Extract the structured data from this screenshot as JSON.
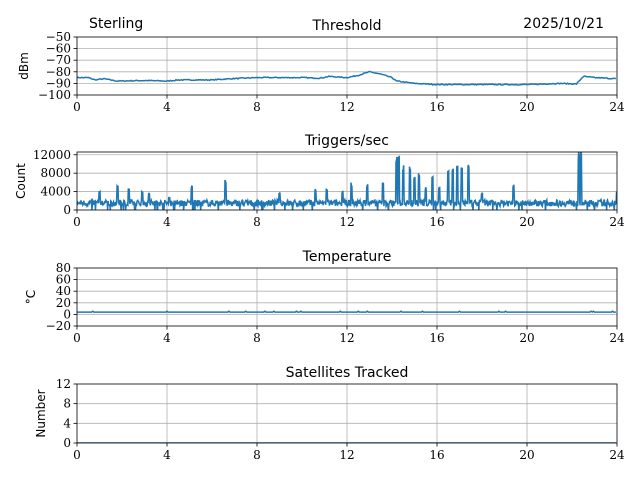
{
  "header": {
    "site": "Sterling",
    "date": "2025/10/21"
  },
  "chart_data": [
    {
      "type": "line",
      "title": "Threshold",
      "xlabel": "",
      "ylabel": "dBm",
      "xlim": [
        0,
        24
      ],
      "ylim": [
        -100,
        -50
      ],
      "xticks": [
        "0",
        "4",
        "8",
        "12",
        "16",
        "20",
        "24"
      ],
      "yticks": [
        "−50",
        "−60",
        "−70",
        "−80",
        "−90",
        "−100"
      ],
      "grid": true,
      "x": [
        0,
        0.5,
        0.8,
        1.2,
        1.8,
        3,
        4,
        4.5,
        6,
        6.8,
        8,
        9,
        10,
        10.8,
        11.2,
        12,
        12.5,
        13,
        13.5,
        14,
        14.2,
        15,
        16,
        18,
        20,
        21.5,
        22.2,
        22.5,
        23,
        24
      ],
      "y": [
        -85,
        -85,
        -87,
        -86,
        -88,
        -87.5,
        -88,
        -87,
        -87,
        -86,
        -85,
        -85,
        -85,
        -85.5,
        -84,
        -85,
        -83,
        -80,
        -82,
        -85,
        -88,
        -90,
        -91,
        -91,
        -91,
        -90,
        -90.5,
        -84,
        -85,
        -86
      ]
    },
    {
      "type": "line",
      "title": "Triggers/sec",
      "xlabel": "",
      "ylabel": "Count",
      "xlim": [
        0,
        24
      ],
      "ylim": [
        0,
        12600
      ],
      "xticks": [
        "0",
        "4",
        "8",
        "12",
        "16",
        "20",
        "24"
      ],
      "yticks": [
        "0",
        "4000",
        "8000",
        "12000"
      ],
      "grid": true,
      "baseline": 1500,
      "spikes_x": [
        1,
        1.8,
        2.3,
        2.9,
        3.2,
        4.1,
        5.1,
        6.6,
        9,
        10.6,
        11.1,
        11.8,
        12.2,
        12.9,
        13.6,
        14.2,
        14.3,
        14.5,
        14.8,
        15,
        15.2,
        15.5,
        15.8,
        16.1,
        16.5,
        16.7,
        16.9,
        17.1,
        17.4,
        18,
        19.4,
        22.3,
        22.4,
        24
      ],
      "spikes_y": [
        4200,
        5300,
        4900,
        4200,
        4000,
        3000,
        5400,
        6600,
        4000,
        4500,
        4900,
        4300,
        6000,
        5800,
        6600,
        11600,
        11800,
        10000,
        9600,
        8000,
        8000,
        5000,
        8200,
        5100,
        9600,
        9800,
        9800,
        9800,
        10100,
        4000,
        5800,
        13000,
        13000,
        3800
      ]
    },
    {
      "type": "line",
      "title": "Temperature",
      "xlabel": "",
      "ylabel": "°C",
      "xlim": [
        0,
        24
      ],
      "ylim": [
        -20,
        80
      ],
      "xticks": [
        "0",
        "4",
        "8",
        "12",
        "16",
        "20",
        "24"
      ],
      "yticks": [
        "80",
        "60",
        "40",
        "20",
        "0",
        "−20"
      ],
      "grid": true,
      "x": [
        0,
        24
      ],
      "y": [
        4,
        4
      ]
    },
    {
      "type": "line",
      "title": "Satellites Tracked",
      "xlabel": "",
      "ylabel": "Number",
      "xlim": [
        0,
        24
      ],
      "ylim": [
        0,
        12
      ],
      "xticks": [
        "0",
        "4",
        "8",
        "12",
        "16",
        "20",
        "24"
      ],
      "yticks": [
        "12",
        "8",
        "4",
        "0"
      ],
      "grid": true,
      "x": [
        0,
        24
      ],
      "y": [
        0,
        0
      ]
    }
  ],
  "colors": {
    "line": "#1f77b4",
    "grid": "#b0b0b0"
  }
}
